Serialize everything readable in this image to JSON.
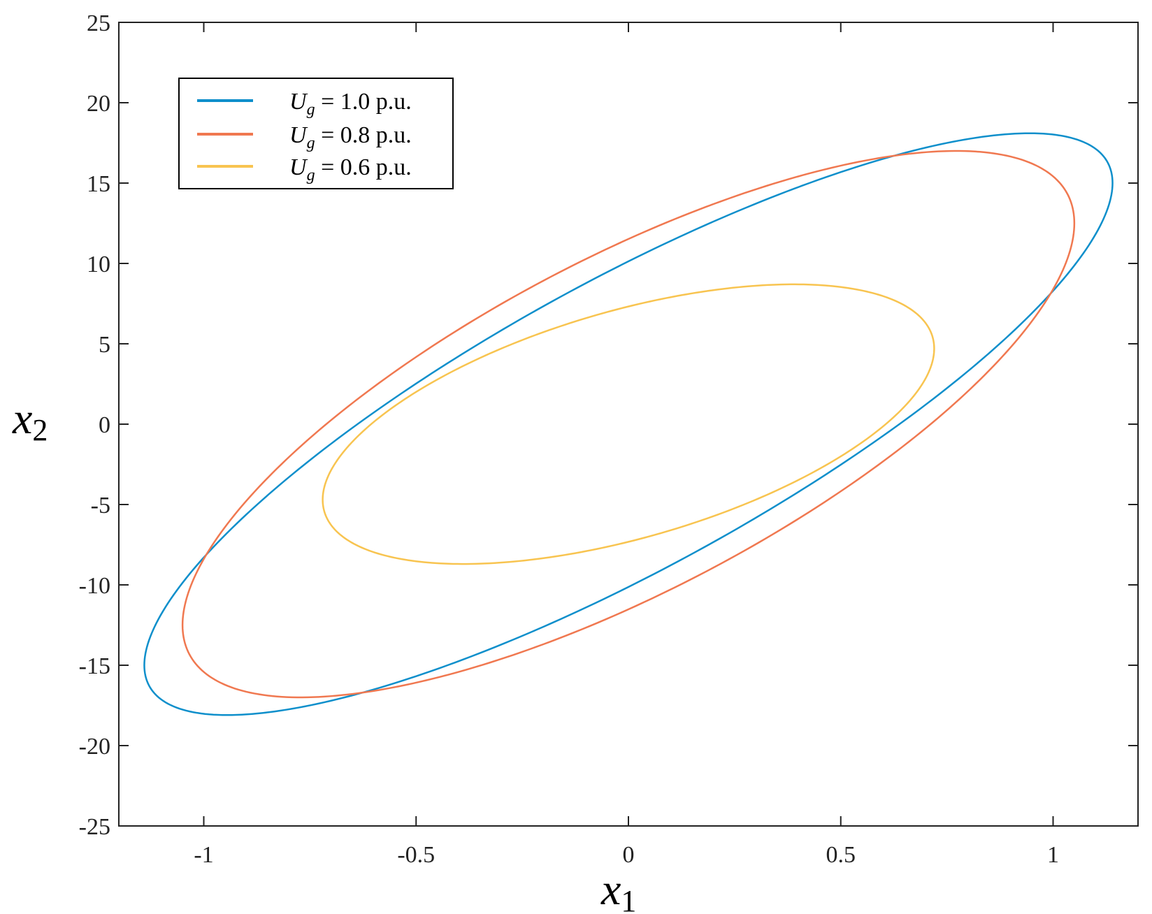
{
  "chart_data": {
    "type": "line",
    "xlabel": {
      "base": "x",
      "sub": "1"
    },
    "ylabel": {
      "base": "x",
      "sub": "2"
    },
    "xlim": [
      -1.2,
      1.2
    ],
    "ylim": [
      -25,
      25
    ],
    "xticks": [
      -1,
      -0.5,
      0,
      0.5,
      1
    ],
    "xtick_labels": [
      "-1",
      "-0.5",
      "0",
      "0.5",
      "1"
    ],
    "yticks": [
      25,
      20,
      15,
      10,
      5,
      0,
      -5,
      -10,
      -15,
      -20,
      -25
    ],
    "ytick_labels": [
      "25",
      "20",
      "15",
      "10",
      "5",
      "0",
      "-5",
      "-10",
      "-15",
      "-20",
      "-25"
    ],
    "grid": false,
    "legend_position": "top-left",
    "series": [
      {
        "name": "Ug = 1.0 p.u.",
        "legend": {
          "sym": "U",
          "sub": "g",
          "rest": " = 1.0 p.u."
        },
        "color": "#0E8FCB",
        "curve": "ellipse",
        "x_max": 1.14,
        "x_at_x_max": 15.0,
        "x2_max": 18.1,
        "x1_at_x2_max": 0.93
      },
      {
        "name": "Ug = 0.8 p.u.",
        "legend": {
          "sym": "U",
          "sub": "g",
          "rest": " = 0.8 p.u."
        },
        "color": "#F07850",
        "curve": "ellipse",
        "x_max": 1.05,
        "x_at_x_max": 12.5,
        "x2_max": 17.0,
        "x1_at_x2_max": 0.74
      },
      {
        "name": "Ug = 0.6 p.u.",
        "legend": {
          "sym": "U",
          "sub": "g",
          "rest": " = 0.6 p.u."
        },
        "color": "#F8C450",
        "curve": "ellipse",
        "x_max": 0.72,
        "x_at_x_max": 4.7,
        "x2_max": 8.7,
        "x1_at_x2_max": 0.38
      }
    ]
  }
}
